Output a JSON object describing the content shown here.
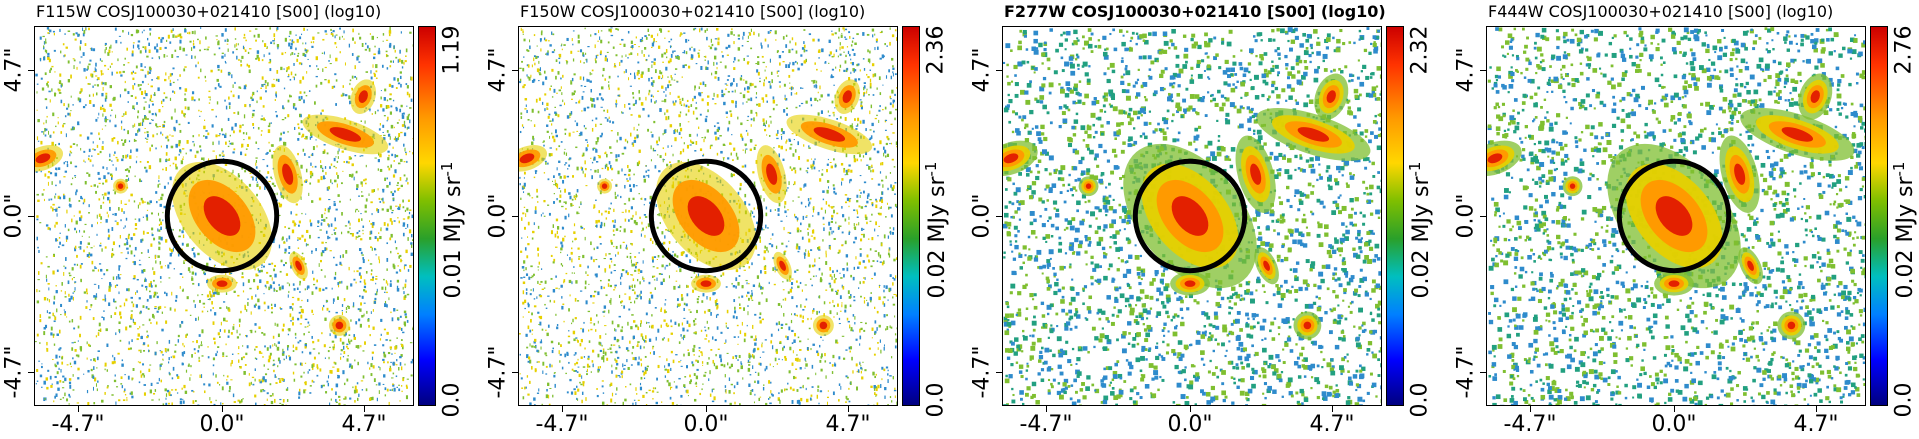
{
  "panels": [
    {
      "title": "F115W COSJ100030+021410 [S00] (log10)",
      "bold": false,
      "y_ticks": [
        "4.7\"",
        "0.0\"",
        "-4.7\""
      ],
      "x_ticks": [
        "-4.7\"",
        "0.0\"",
        "4.7\""
      ],
      "cbar_ticks": [
        "1.19",
        "0.01 MJy sr",
        "0.0"
      ],
      "cbar_unit_sup": "-1",
      "style": "sparse"
    },
    {
      "title": "F150W COSJ100030+021410 [S00] (log10)",
      "bold": false,
      "y_ticks": [
        "4.7\"",
        "0.0\"",
        "-4.7\""
      ],
      "x_ticks": [
        "-4.7\"",
        "0.0\"",
        "4.7\""
      ],
      "cbar_ticks": [
        "2.36",
        "0.02 MJy sr",
        "0.0"
      ],
      "cbar_unit_sup": "-1",
      "style": "sparse"
    },
    {
      "title": "F277W COSJ100030+021410 [S00] (log10)",
      "bold": true,
      "y_ticks": [
        "4.7\"",
        "0.0\"",
        "-4.7\""
      ],
      "x_ticks": [
        "-4.7\"",
        "0.0\"",
        "4.7\""
      ],
      "cbar_ticks": [
        "2.32",
        "0.02 MJy sr",
        "0.0"
      ],
      "cbar_unit_sup": "-1",
      "style": "dense"
    },
    {
      "title": "F444W COSJ100030+021410 [S00] (log10)",
      "bold": false,
      "y_ticks": [
        "4.7\"",
        "0.0\"",
        "-4.7\""
      ],
      "x_ticks": [
        "-4.7\"",
        "0.0\"",
        "4.7\""
      ],
      "cbar_ticks": [
        "2.76",
        "0.02 MJy sr",
        "0.0"
      ],
      "cbar_unit_sup": "-1",
      "style": "dense"
    }
  ],
  "colors": {
    "core": "#e32000",
    "mid": "#ff9a00",
    "outer": "#e6d000",
    "halo": "#7fbf30",
    "noise": "#2e8bcc",
    "aperture": "#000000"
  }
}
